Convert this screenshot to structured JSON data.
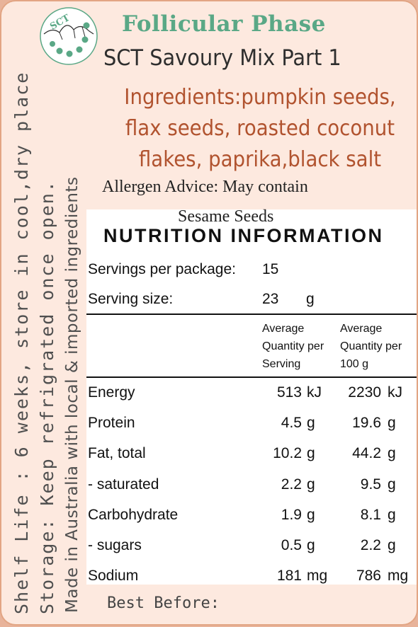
{
  "brand": {
    "logo_text": "SCT"
  },
  "title": "Follicular Phase",
  "subtitle": "SCT Savoury Mix Part 1",
  "ingredients": [
    "Ingredients:pumpkin seeds,",
    "flax seeds, roasted coconut",
    "flakes, paprika,black salt"
  ],
  "allergen": [
    "Allergen Advice: May contain",
    "Sesame Seeds"
  ],
  "side_text": [
    "Shelf Life : 6 weeks, store in cool,dry place",
    "Storage: Keep refrigrated once open.",
    "Made in Australia with local & imported ingredients"
  ],
  "nutrition": {
    "heading": "NUTRITION INFORMATION",
    "servings_label": "Servings per package:",
    "servings_value": "15",
    "size_label": "Serving size:",
    "size_value": "23",
    "size_unit": "g",
    "col1_header": [
      "Average",
      "Quantity per",
      "Serving"
    ],
    "col2_header": [
      "Average",
      "Quantity per",
      "100 g"
    ],
    "rows": [
      {
        "name": "Energy",
        "v1": "513",
        "u1": "kJ",
        "v2": "2230",
        "u2": "kJ"
      },
      {
        "name": "Protein",
        "v1": "4.5",
        "u1": "g",
        "v2": "19.6",
        "u2": "g"
      },
      {
        "name": "Fat, total",
        "v1": "10.2",
        "u1": "g",
        "v2": "44.2",
        "u2": "g"
      },
      {
        "name": "- saturated",
        "v1": "2.2",
        "u1": "g",
        "v2": "9.5",
        "u2": "g"
      },
      {
        "name": "Carbohydrate",
        "v1": "1.9",
        "u1": "g",
        "v2": "8.1",
        "u2": "g"
      },
      {
        "name": "- sugars",
        "v1": "0.5",
        "u1": "g",
        "v2": "2.2",
        "u2": "g"
      },
      {
        "name": "Sodium",
        "v1": "181",
        "u1": "mg",
        "v2": "786",
        "u2": "mg"
      }
    ]
  },
  "best_before_label": "Best Before:",
  "colors": {
    "title": "#5aa886",
    "ingredients": "#b1532f",
    "background": "#fde9df",
    "border": "#e2a584"
  }
}
